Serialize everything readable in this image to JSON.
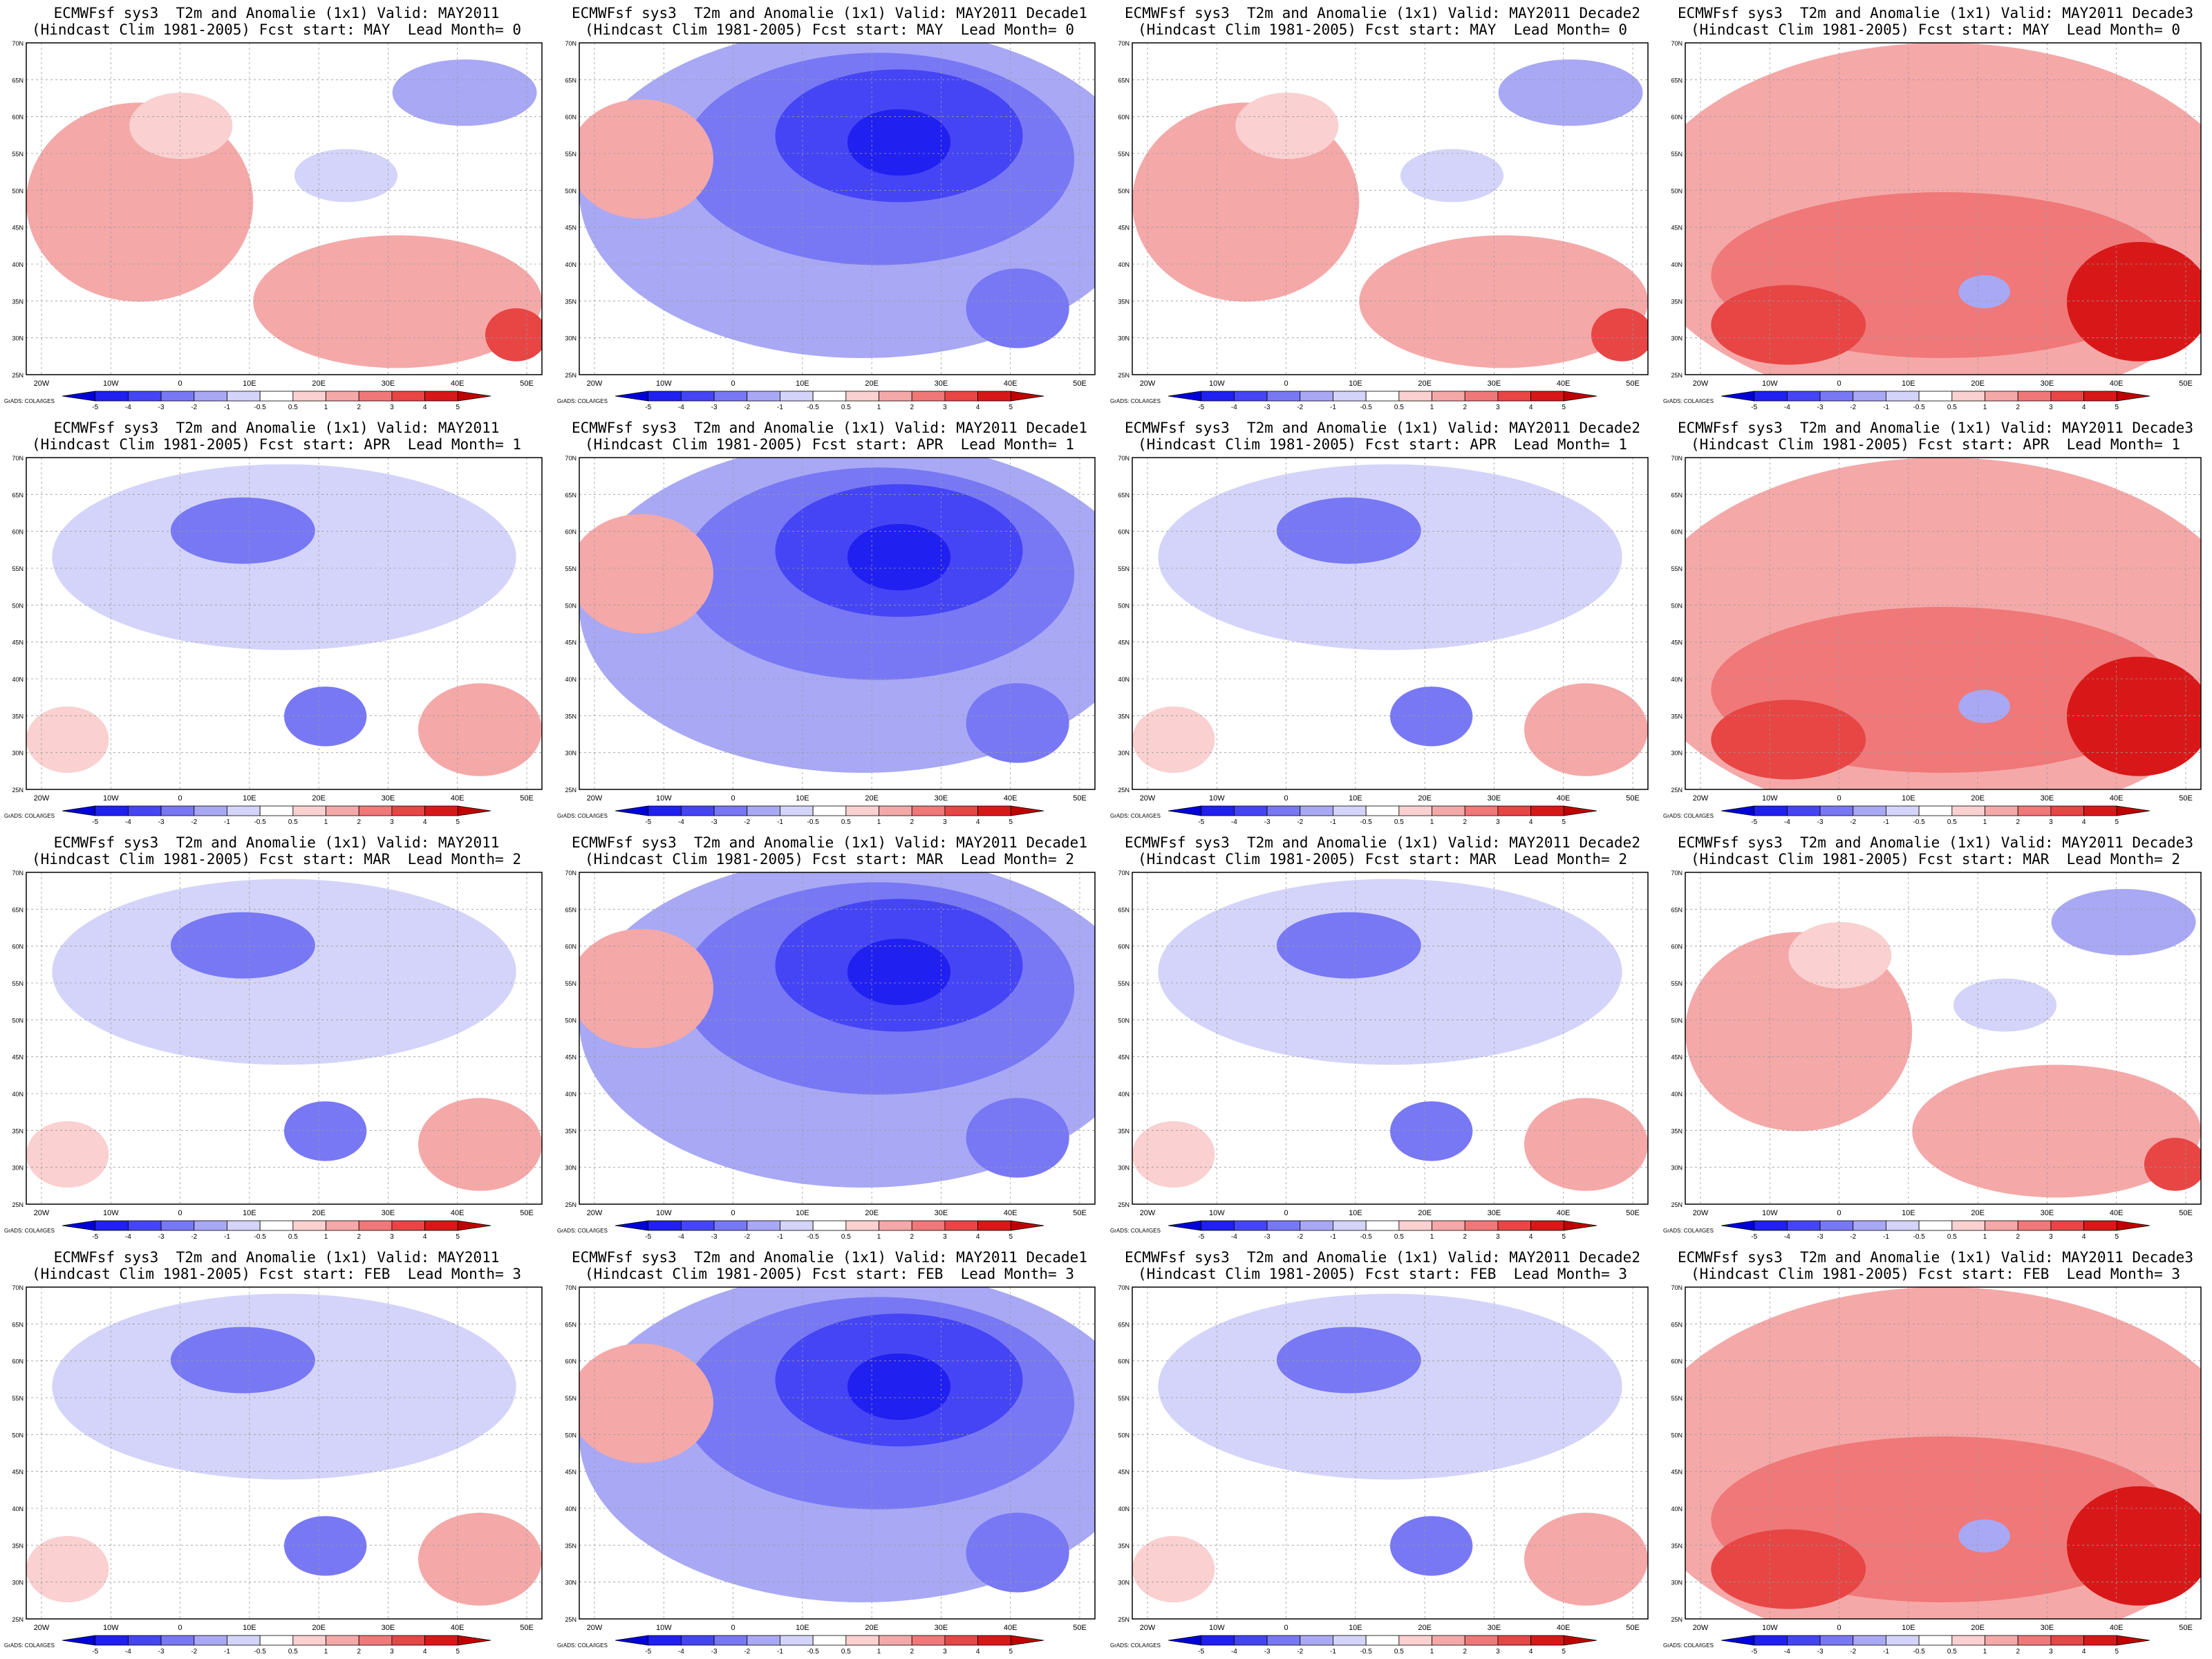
{
  "colorbar": {
    "levels": [
      "-5",
      "-4",
      "-3",
      "-2",
      "-1",
      "-0.5",
      "0.5",
      "1",
      "2",
      "3",
      "4",
      "5"
    ],
    "colors": [
      "#0000d8",
      "#2020f0",
      "#4545f5",
      "#7878f5",
      "#a8a8f5",
      "#d4d4fa",
      "#ffffff",
      "#fad0d0",
      "#f5a8a8",
      "#f07878",
      "#e84545",
      "#d81818",
      "#c00000"
    ]
  },
  "x_ticks": [
    "20W",
    "10W",
    "0",
    "10E",
    "20E",
    "30E",
    "40E",
    "50E"
  ],
  "y_ticks": [
    "25N",
    "30N",
    "35N",
    "40N",
    "45N",
    "50N",
    "55N",
    "60N",
    "65N",
    "70N"
  ],
  "credit": "GrADS: COLA/IGES",
  "panels": [
    {
      "title": "ECMWFsf sys3  T2m and Anomalie (1x1) Valid: MAY2011",
      "subtitle": "(Hindcast Clim 1981-2005) Fcst start: MAY  Lead Month= 0",
      "anomaly": "warm-weak"
    },
    {
      "title": "ECMWFsf sys3  T2m and Anomalie (1x1) Valid: MAY2011 Decade1",
      "subtitle": "(Hindcast Clim 1981-2005) Fcst start: MAY  Lead Month= 0",
      "anomaly": "cold-strong"
    },
    {
      "title": "ECMWFsf sys3  T2m and Anomalie (1x1) Valid: MAY2011 Decade2",
      "subtitle": "(Hindcast Clim 1981-2005) Fcst start: MAY  Lead Month= 0",
      "anomaly": "warm-weak"
    },
    {
      "title": "ECMWFsf sys3  T2m and Anomalie (1x1) Valid: MAY2011 Decade3",
      "subtitle": "(Hindcast Clim 1981-2005) Fcst start: MAY  Lead Month= 0",
      "anomaly": "warm-strong"
    },
    {
      "title": "ECMWFsf sys3  T2m and Anomalie (1x1) Valid: MAY2011",
      "subtitle": "(Hindcast Clim 1981-2005) Fcst start: APR  Lead Month= 1",
      "anomaly": "cold-weak"
    },
    {
      "title": "ECMWFsf sys3  T2m and Anomalie (1x1) Valid: MAY2011 Decade1",
      "subtitle": "(Hindcast Clim 1981-2005) Fcst start: APR  Lead Month= 1",
      "anomaly": "cold-strong"
    },
    {
      "title": "ECMWFsf sys3  T2m and Anomalie (1x1) Valid: MAY2011 Decade2",
      "subtitle": "(Hindcast Clim 1981-2005) Fcst start: APR  Lead Month= 1",
      "anomaly": "cold-weak"
    },
    {
      "title": "ECMWFsf sys3  T2m and Anomalie (1x1) Valid: MAY2011 Decade3",
      "subtitle": "(Hindcast Clim 1981-2005) Fcst start: APR  Lead Month= 1",
      "anomaly": "warm-strong"
    },
    {
      "title": "ECMWFsf sys3  T2m and Anomalie (1x1) Valid: MAY2011",
      "subtitle": "(Hindcast Clim 1981-2005) Fcst start: MAR  Lead Month= 2",
      "anomaly": "cold-weak"
    },
    {
      "title": "ECMWFsf sys3  T2m and Anomalie (1x1) Valid: MAY2011 Decade1",
      "subtitle": "(Hindcast Clim 1981-2005) Fcst start: MAR  Lead Month= 2",
      "anomaly": "cold-strong"
    },
    {
      "title": "ECMWFsf sys3  T2m and Anomalie (1x1) Valid: MAY2011 Decade2",
      "subtitle": "(Hindcast Clim 1981-2005) Fcst start: MAR  Lead Month= 2",
      "anomaly": "cold-weak"
    },
    {
      "title": "ECMWFsf sys3  T2m and Anomalie (1x1) Valid: MAY2011 Decade3",
      "subtitle": "(Hindcast Clim 1981-2005) Fcst start: MAR  Lead Month= 2",
      "anomaly": "warm-weak"
    },
    {
      "title": "ECMWFsf sys3  T2m and Anomalie (1x1) Valid: MAY2011",
      "subtitle": "(Hindcast Clim 1981-2005) Fcst start: FEB  Lead Month= 3",
      "anomaly": "cold-weak"
    },
    {
      "title": "ECMWFsf sys3  T2m and Anomalie (1x1) Valid: MAY2011 Decade1",
      "subtitle": "(Hindcast Clim 1981-2005) Fcst start: FEB  Lead Month= 3",
      "anomaly": "cold-strong"
    },
    {
      "title": "ECMWFsf sys3  T2m and Anomalie (1x1) Valid: MAY2011 Decade2",
      "subtitle": "(Hindcast Clim 1981-2005) Fcst start: FEB  Lead Month= 3",
      "anomaly": "cold-weak"
    },
    {
      "title": "ECMWFsf sys3  T2m and Anomalie (1x1) Valid: MAY2011 Decade3",
      "subtitle": "(Hindcast Clim 1981-2005) Fcst start: FEB  Lead Month= 3",
      "anomaly": "warm-strong"
    }
  ]
}
